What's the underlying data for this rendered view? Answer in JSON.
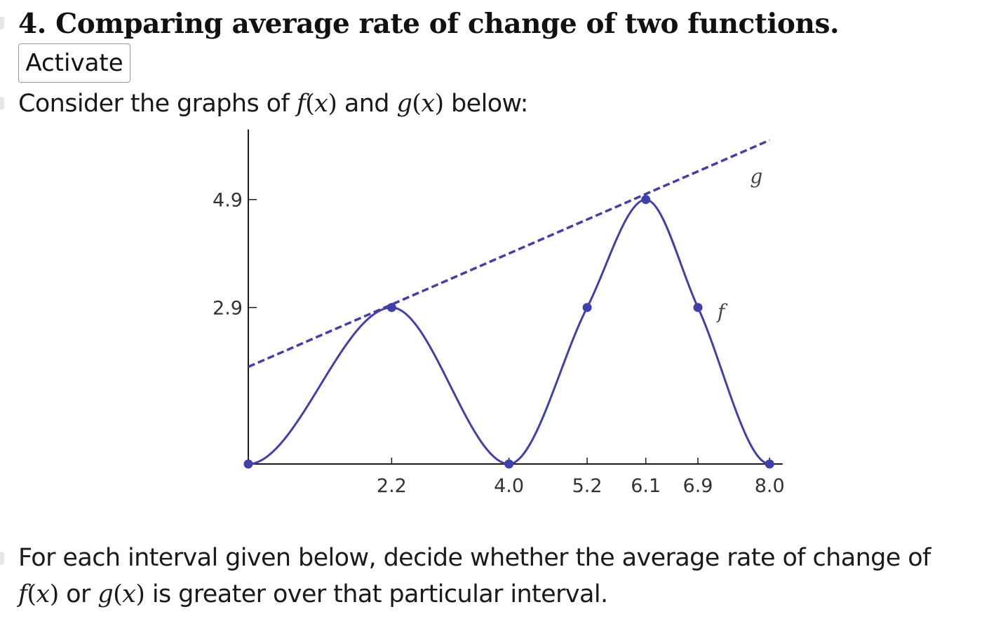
{
  "problem": {
    "title": "4. Comparing average rate of change of two functions.",
    "activate_label": "Activate",
    "intro_before": "Consider the graphs of ",
    "f_name": "f",
    "g_name": "g",
    "var": "x",
    "intro_and": " and ",
    "intro_after": " below:",
    "question_line1": "For each interval given below, decide whether the average rate of change of",
    "question_or": " or ",
    "question_line2_end": " is greater over that particular interval."
  },
  "colors": {
    "curve": "#4040a8",
    "axis": "#1a1a1a",
    "text": "#1a1a1a"
  },
  "chart_data": {
    "type": "line",
    "x_ticks": [
      2.2,
      4.0,
      5.2,
      6.1,
      6.9,
      8.0
    ],
    "x_tick_labels": [
      "2.2",
      "4.0",
      "5.2",
      "6.1",
      "6.9",
      "8.0"
    ],
    "y_ticks": [
      2.9,
      4.9
    ],
    "y_tick_labels": [
      "2.9",
      "4.9"
    ],
    "xlim": [
      0,
      8.2
    ],
    "ylim": [
      0,
      6.2
    ],
    "series": [
      {
        "name": "f",
        "style": "solid",
        "points": [
          [
            0,
            0
          ],
          [
            2.2,
            2.9
          ],
          [
            4.0,
            0
          ],
          [
            5.2,
            2.9
          ],
          [
            6.1,
            4.9
          ],
          [
            6.9,
            2.9
          ],
          [
            8.0,
            0
          ]
        ],
        "marked_points": [
          [
            0,
            0
          ],
          [
            2.2,
            2.9
          ],
          [
            4.0,
            0
          ],
          [
            5.2,
            2.9
          ],
          [
            6.1,
            4.9
          ],
          [
            6.9,
            2.9
          ],
          [
            8.0,
            0
          ]
        ]
      },
      {
        "name": "g",
        "style": "dashed",
        "points": [
          [
            0,
            1.8
          ],
          [
            8.0,
            6.0
          ]
        ]
      }
    ]
  }
}
